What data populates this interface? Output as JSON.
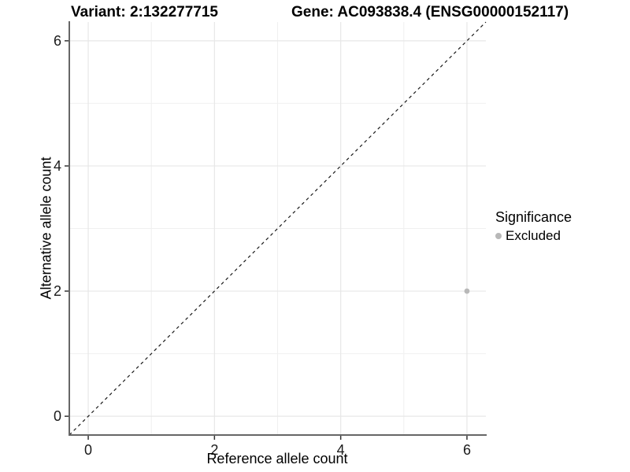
{
  "titles": {
    "variant": "Variant: 2:132277715",
    "gene": "Gene: AC093838.4 (ENSG00000152117)"
  },
  "legend": {
    "title": "Significance",
    "items": [
      {
        "label": "Excluded",
        "color": "#b8b8b8"
      }
    ]
  },
  "colors": {
    "axis_line": "#666666",
    "tick_mark": "#333333",
    "tick_label": "#1a1a1a",
    "major_grid": "#e7e7e7",
    "minor_grid": "#f0f0f0",
    "identity_line": "#1a1a1a",
    "point": "#b8b8b8",
    "background": "#ffffff"
  },
  "chart_data": {
    "type": "scatter",
    "title_left": "Variant: 2:132277715",
    "title_right": "Gene: AC093838.4 (ENSG00000152117)",
    "xlabel": "Reference allele count",
    "ylabel": "Alternative allele count",
    "xlim": [
      -0.3,
      6.3
    ],
    "ylim": [
      -0.3,
      6.3
    ],
    "x_ticks": [
      0,
      2,
      4,
      6
    ],
    "y_ticks": [
      0,
      2,
      4,
      6
    ],
    "x_minor_ticks": [
      1,
      3,
      5
    ],
    "y_minor_ticks": [
      1,
      3,
      5
    ],
    "grid": true,
    "legend_position": "right",
    "legend_title": "Significance",
    "series": [
      {
        "name": "Excluded",
        "color": "#b8b8b8",
        "points": [
          {
            "x": 6,
            "y": 2
          }
        ]
      }
    ],
    "reference_line": {
      "kind": "identity",
      "style": "dashed",
      "from": [
        -0.3,
        -0.3
      ],
      "to": [
        6.3,
        6.3
      ]
    }
  }
}
